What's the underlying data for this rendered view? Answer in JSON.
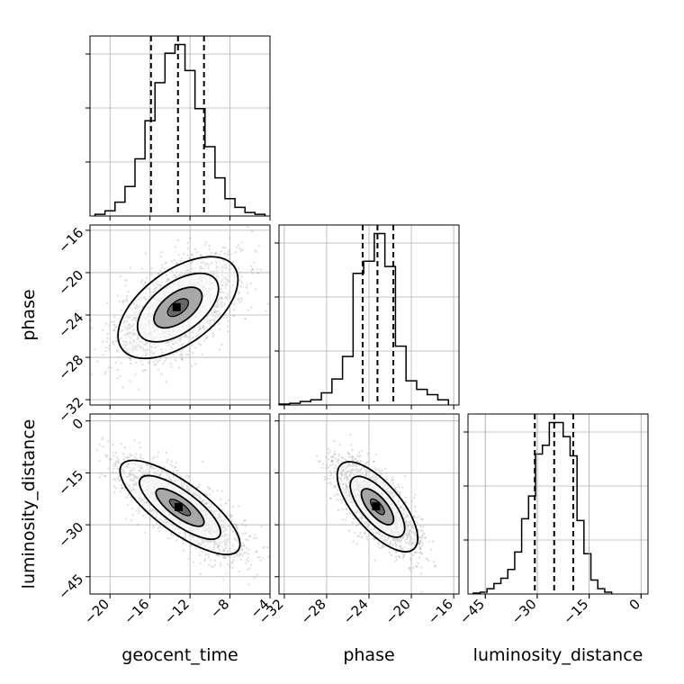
{
  "chart_data": {
    "type": "corner",
    "parameters": [
      "geocent_time",
      "phase",
      "luminosity_distance"
    ],
    "grid": true,
    "marginals": [
      {
        "parameter": "geocent_time",
        "quantiles": [
          -15.9,
          -13.2,
          -10.6
        ],
        "bins": [
          -21.5,
          -20.5,
          -19.5,
          -18.5,
          -17.5,
          -16.5,
          -15.5,
          -14.5,
          -13.5,
          -12.5,
          -11.5,
          -10.5,
          -9.5,
          -8.5,
          -7.5,
          -6.5,
          -5.5,
          -4.5
        ],
        "counts": [
          1,
          3,
          8,
          17,
          33,
          55,
          77,
          94,
          99,
          84,
          62,
          40,
          22,
          10,
          5,
          2,
          1
        ],
        "range": [
          -22.0,
          -4.0
        ]
      },
      {
        "parameter": "phase",
        "quantiles": [
          -24.6,
          -23.2,
          -21.7
        ],
        "bins": [
          -32.5,
          -31.5,
          -30.5,
          -29.5,
          -28.5,
          -27.5,
          -26.5,
          -25.5,
          -24.5,
          -23.5,
          -22.5,
          -21.5,
          -20.5,
          -19.5,
          -18.5,
          -17.5,
          -16.5
        ],
        "counts": [
          0.5,
          1,
          2,
          3,
          7,
          15,
          28,
          76,
          83,
          99,
          80,
          34,
          14,
          9,
          6,
          3
        ],
        "range": [
          -32.5,
          -15.5
        ]
      },
      {
        "parameter": "luminosity_distance",
        "quantiles": [
          -30.7,
          -25.1,
          -19.6
        ],
        "bins": [
          -48.5,
          -46.5,
          -44.5,
          -42.5,
          -40.5,
          -38.5,
          -36.5,
          -34.5,
          -32.5,
          -30.5,
          -28.5,
          -26.5,
          -24.5,
          -22.5,
          -20.5,
          -18.5,
          -16.5,
          -14.5,
          -12.5,
          -10.5,
          -8.5
        ],
        "counts": [
          0.5,
          1,
          3,
          6,
          9,
          14,
          24,
          43,
          56,
          80,
          85,
          98,
          98,
          90,
          79,
          42,
          23,
          8,
          3,
          1
        ],
        "range": [
          -50.0,
          2.0
        ]
      }
    ],
    "pairs": [
      {
        "x": "geocent_time",
        "y": "phase",
        "mean": [
          -13.2,
          -23.3
        ],
        "std": [
          3.0,
          2.4
        ],
        "corr": 0.55,
        "xlim": [
          -22.0,
          -4.0
        ],
        "ylim": [
          -32.5,
          -15.5
        ]
      },
      {
        "x": "geocent_time",
        "y": "luminosity_distance",
        "mean": [
          -13.0,
          -25.0
        ],
        "std": [
          3.0,
          6.8
        ],
        "corr": -0.78,
        "xlim": [
          -22.0,
          -4.0
        ],
        "ylim": [
          -50.0,
          2.0
        ]
      },
      {
        "x": "phase",
        "y": "luminosity_distance",
        "mean": [
          -23.2,
          -24.8
        ],
        "std": [
          1.9,
          6.5
        ],
        "corr": -0.7,
        "xlim": [
          -32.5,
          -15.5
        ],
        "ylim": [
          -50.0,
          2.0
        ]
      }
    ],
    "xticks": {
      "geocent_time": [
        "-20",
        "-16",
        "-12",
        "-8",
        "-4"
      ],
      "phase": [
        "-32",
        "-28",
        "-24",
        "-20",
        "-16"
      ],
      "luminosity_distance": [
        "-45",
        "-30",
        "-15",
        "0"
      ]
    },
    "yticks": {
      "phase": [
        "-16",
        "-20",
        "-24",
        "-28",
        "-32"
      ],
      "luminosity_distance": [
        "0",
        "-15",
        "-30",
        "-45"
      ]
    },
    "xlabels": [
      "geocent_time",
      "phase",
      "luminosity_distance"
    ],
    "ylabels": [
      "phase",
      "luminosity_distance"
    ]
  }
}
